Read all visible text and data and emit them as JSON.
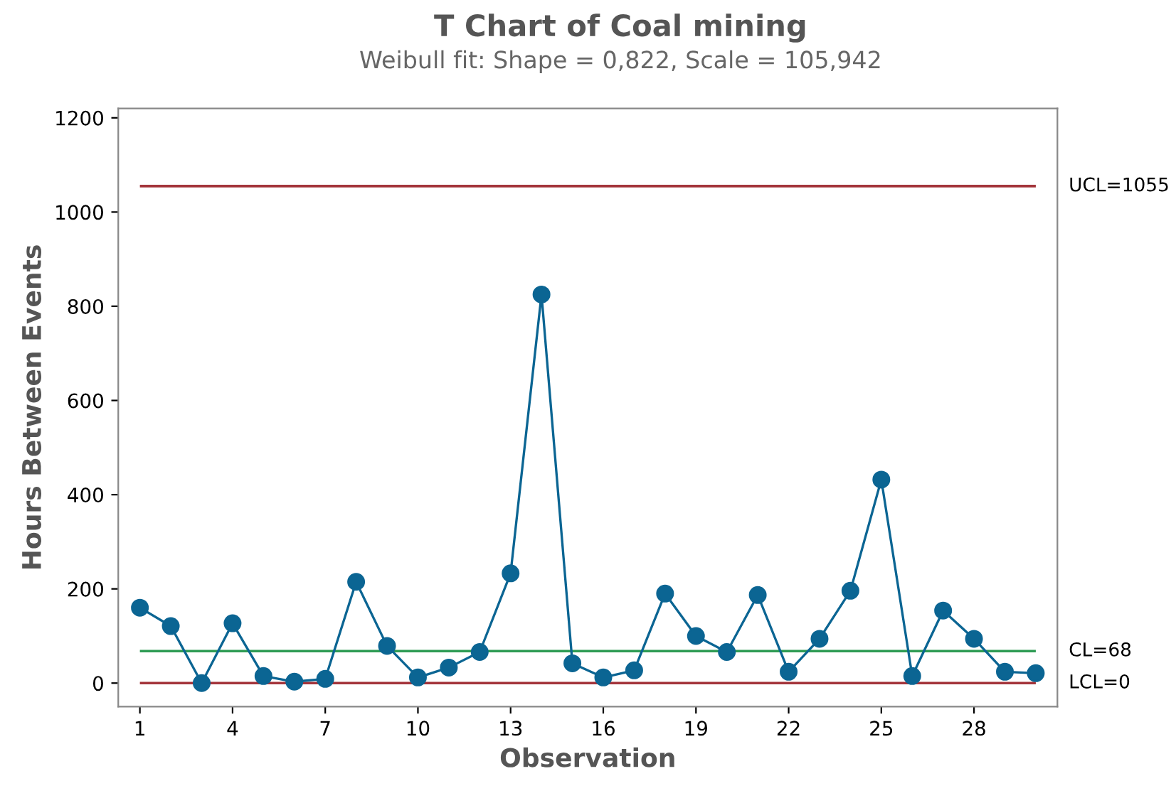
{
  "chart_data": {
    "type": "line",
    "title": "T Chart of Coal mining",
    "subtitle": "Weibull fit: Shape = 0,822, Scale = 105,942",
    "xlabel": "Observation",
    "ylabel": "Hours Between Events",
    "x": [
      1,
      2,
      3,
      4,
      5,
      6,
      7,
      8,
      9,
      10,
      11,
      12,
      13,
      14,
      15,
      16,
      17,
      18,
      19,
      20,
      21,
      22,
      23,
      24,
      25,
      26,
      27,
      28,
      29,
      30
    ],
    "series": [
      {
        "color": "#0b6593",
        "values": [
          160,
          121,
          0,
          127,
          15,
          3,
          9,
          215,
          79,
          12,
          33,
          66,
          233,
          825,
          42,
          12,
          27,
          190,
          100,
          66,
          187,
          24,
          94,
          196,
          432,
          15,
          154,
          94,
          24,
          21
        ]
      }
    ],
    "xlim": [
      0.3,
      30.7
    ],
    "xticks": [
      1,
      4,
      7,
      10,
      13,
      16,
      19,
      22,
      25,
      28
    ],
    "ylim": [
      -50,
      1220
    ],
    "yticks": [
      0,
      200,
      400,
      600,
      800,
      1000,
      1200
    ],
    "ref_lines": [
      {
        "axis": "y",
        "value": 1055,
        "label": "UCL=1055",
        "color": "#a3343a"
      },
      {
        "axis": "y",
        "value": 68,
        "label": "CL=68",
        "color": "#2e9b54"
      },
      {
        "axis": "y",
        "value": 0,
        "label": "LCL=0",
        "color": "#a3343a"
      }
    ],
    "marker": "circle",
    "line_style": "solid",
    "grid": false,
    "legend": false
  }
}
